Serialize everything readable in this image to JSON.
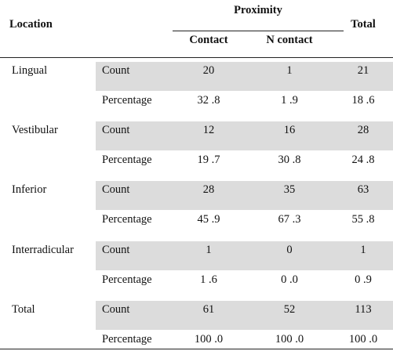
{
  "header": {
    "location": "Location",
    "proximity": "Proximity",
    "contact": "Contact",
    "n_contact": "N contact",
    "total": "Total"
  },
  "rows": [
    {
      "location": "Lingual",
      "count": {
        "label": "Count",
        "contact": "20",
        "n_contact": "1",
        "total": "21"
      },
      "percentage": {
        "label": "Percentage",
        "contact": "32 .8",
        "n_contact": "1 .9",
        "total": "18 .6"
      }
    },
    {
      "location": "Vestibular",
      "count": {
        "label": "Count",
        "contact": "12",
        "n_contact": "16",
        "total": "28"
      },
      "percentage": {
        "label": "Percentage",
        "contact": "19 .7",
        "n_contact": "30 .8",
        "total": "24 .8"
      }
    },
    {
      "location": "Inferior",
      "count": {
        "label": "Count",
        "contact": "28",
        "n_contact": "35",
        "total": "63"
      },
      "percentage": {
        "label": "Percentage",
        "contact": "45 .9",
        "n_contact": "67 .3",
        "total": "55 .8"
      }
    },
    {
      "location": "Interradicular",
      "count": {
        "label": "Count",
        "contact": "1",
        "n_contact": "0",
        "total": "1"
      },
      "percentage": {
        "label": "Percentage",
        "contact": "1 .6",
        "n_contact": "0 .0",
        "total": "0 .9"
      }
    },
    {
      "location": "Total",
      "count": {
        "label": "Count",
        "contact": "61",
        "n_contact": "52",
        "total": "113"
      },
      "percentage": {
        "label": "Percentage",
        "contact": "100 .0",
        "n_contact": "100 .0",
        "total": "100 .0"
      }
    }
  ]
}
